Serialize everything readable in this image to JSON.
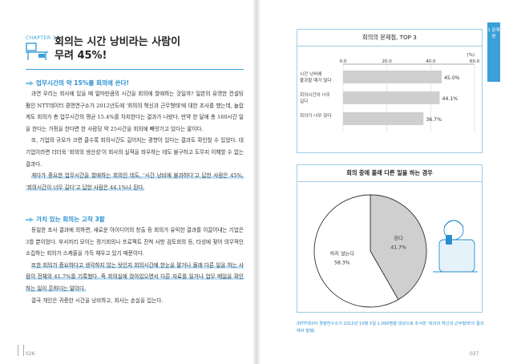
{
  "left_page": {
    "chapter": "CHAPTER 1",
    "title_line1": "회의는 시간 낭비라는 사람이",
    "title_line2": "무려 45%!",
    "section1_heading": "업무시간의 약 15%를 회의에 쓴다!",
    "section1_paragraphs": [
      "과연 우리는 회사에 있을 때 얼마만큼의 시간을 회의에 할애하는 것일까? 일본의 유명한 컨설팅 펌인 NTT데이터 경영연구소가 2012년도에 '회의의 혁신과 근무형태'에 대한 조사를 했는데, 놀랍게도 회의가 총 업무시간의 평균 15.4%를 차지한다는 결과가 나왔다. 만약 한 달에 총 160시간 일을 한다는 가정을 한다면 한 사람당 약 25시간을 회의에 빼앗기고 있다는 말이다.",
      "또, 기업의 규모가 크면 클수록 회의시간도 길어지는 경향이 있다는 결과도 확인할 수 있었다. 대기업이라면 더더욱 '회의의 생산성'이 회사의 실적을 좌우하는 테도 불구하고 도무지 이해할 수 없는 결과다.",
      "게다가 중요한 업무시간을 할애하는 회의인 데도, '시간 낭비에 불과하다'고 답한 사람은 45%, '회의시간이 너무 길다'고 답한 사람은 44.1%나 된다."
    ],
    "section2_heading": "가치 있는 회의는 고작 3할",
    "section2_paragraphs": [
      "동일한 조사 결과에 의하면, 새로운 아이디어의 창출 등 회의가 유익한 결과를 이끌어내는 기업은 3할 뿐이었다. 부서끼리 모이는 정기회의나 프로젝트 진척 사항 검토회의 등, 타성에 젖어 의무적인 소집하는 회의가 스케줄을 가득 채우고 있기 때문이다.",
      "또한 회의가 중요하다고 생각하지 않는 탓인지 회의시간에 한눈을 팔거나 몰래 다른 일을 하는 사람이 전체의 41.7%를 기록했다. 즉 회의실에 앉아있으면서 다른 자료를 읽거나 업무 메일을 확인하는 일이 흔하다는 말이다.",
      "결국 개인은 귀중한 시간을 낭비하고, 회사는 손실을 입는다."
    ],
    "page_number": "026"
  },
  "right_page": {
    "tab_text": "1 문제 편",
    "page_number": "027",
    "caption": "(NTT데이터 경영연구소가 2012년 10월 5일 1,090명을 대상으로 조사한 '회의의 혁신과 근무형태'의 결과에서 발췌)"
  },
  "chart_data": [
    {
      "type": "bar",
      "orientation": "horizontal",
      "title": "회의의 문제점, TOP 3",
      "unit_label": "(%)",
      "xlim": [
        0,
        60
      ],
      "ticks": [
        "0.0",
        "20.0",
        "40.0",
        "60.0"
      ],
      "categories": [
        "시간 낭비에 불과할 때가 많다",
        "회의시간이 너무 길다",
        "회의가 너무 잦다"
      ],
      "values": [
        45.0,
        44.1,
        36.7
      ],
      "value_labels": [
        "45.0%",
        "44.1%",
        "36.7%"
      ],
      "bar_color": "#cfcfcf",
      "grid": true
    },
    {
      "type": "pie",
      "title": "회의 중에 몰래 다른 일을 하는 경우",
      "categories": [
        "한다",
        "하지 않는다"
      ],
      "values": [
        41.7,
        58.3
      ],
      "value_labels": [
        "41.7%",
        "58.3%"
      ],
      "colors": [
        "#cfcfcf",
        "#ffffff"
      ]
    }
  ]
}
